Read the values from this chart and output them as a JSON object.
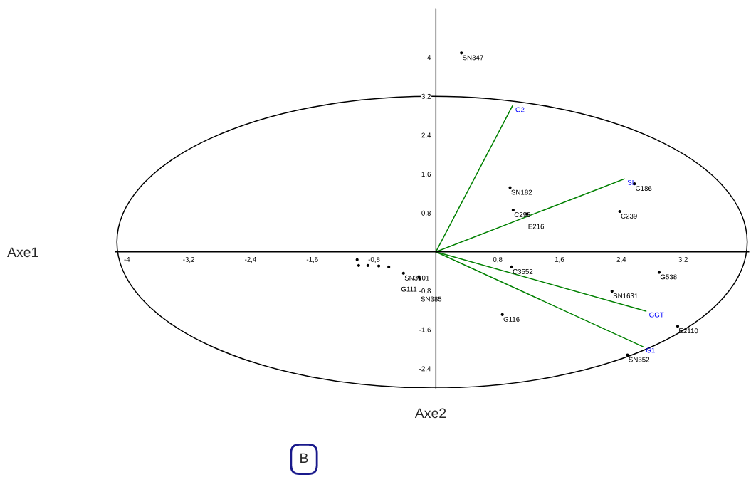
{
  "chart_data": {
    "type": "scatter",
    "xlim": [
      -4.15,
      4.05
    ],
    "ylim": [
      -2.8,
      5
    ],
    "xticks": [
      {
        "value": -4,
        "label": "-4"
      },
      {
        "value": -3.2,
        "label": "-3,2"
      },
      {
        "value": -2.4,
        "label": "-2,4"
      },
      {
        "value": -1.6,
        "label": "-1,6"
      },
      {
        "value": -0.8,
        "label": "-0,8"
      },
      {
        "value": 0.8,
        "label": "0,8"
      },
      {
        "value": 1.6,
        "label": "1,6"
      },
      {
        "value": 2.4,
        "label": "2,4"
      },
      {
        "value": 3.2,
        "label": "3,2"
      }
    ],
    "yticks": [
      {
        "value": -2.4,
        "label": "-2,4"
      },
      {
        "value": -1.6,
        "label": "-1,6"
      },
      {
        "value": -0.8,
        "label": "-0,8"
      },
      {
        "value": 0.8,
        "label": "0,8"
      },
      {
        "value": 1.6,
        "label": "1,6"
      },
      {
        "value": 2.4,
        "label": "2,4"
      },
      {
        "value": 3.2,
        "label": "3,2"
      },
      {
        "value": 4,
        "label": "4"
      }
    ],
    "grid": false,
    "legend": false,
    "series": [
      {
        "marker": "circle",
        "color": "#000000",
        "x": [
          0.33,
          0.96,
          2.57,
          1.0,
          1.18,
          2.38,
          0.98,
          2.89,
          2.28,
          0.86,
          3.13,
          2.48,
          -1.02,
          -1.0,
          -0.88,
          -0.74,
          -0.61,
          -0.42,
          -0.22,
          -0.21
        ],
        "values": [
          4.09,
          1.32,
          1.4,
          0.86,
          0.78,
          0.83,
          -0.31,
          -0.42,
          -0.81,
          -1.29,
          -1.53,
          -2.12,
          -0.16,
          -0.28,
          -0.28,
          -0.29,
          -0.31,
          -0.44,
          -0.51,
          -0.55
        ],
        "value_labels": [
          "SN347",
          "SN182",
          "C186",
          "C298",
          "E216",
          "C239",
          "C3552",
          "G538",
          "SN1631",
          "G116",
          "E2110",
          "SN352",
          null,
          null,
          null,
          null,
          null,
          "SN3101",
          "G111",
          "SN385"
        ]
      },
      {
        "type": "line",
        "name": "G2",
        "color": "#008000",
        "x": [
          0,
          0.99
        ],
        "values": [
          0,
          3.0
        ]
      },
      {
        "type": "line",
        "name": "SL",
        "color": "#008000",
        "x": [
          0,
          2.44
        ],
        "values": [
          0,
          1.5
        ]
      },
      {
        "type": "line",
        "name": "GGT",
        "color": "#008000",
        "x": [
          0,
          2.72
        ],
        "values": [
          0,
          -1.22
        ]
      },
      {
        "type": "line",
        "name": "G1",
        "color": "#008000",
        "x": [
          0,
          2.68
        ],
        "values": [
          0,
          -1.95
        ]
      }
    ],
    "annotations": [
      "Axe1",
      "Axe2",
      "B"
    ]
  }
}
